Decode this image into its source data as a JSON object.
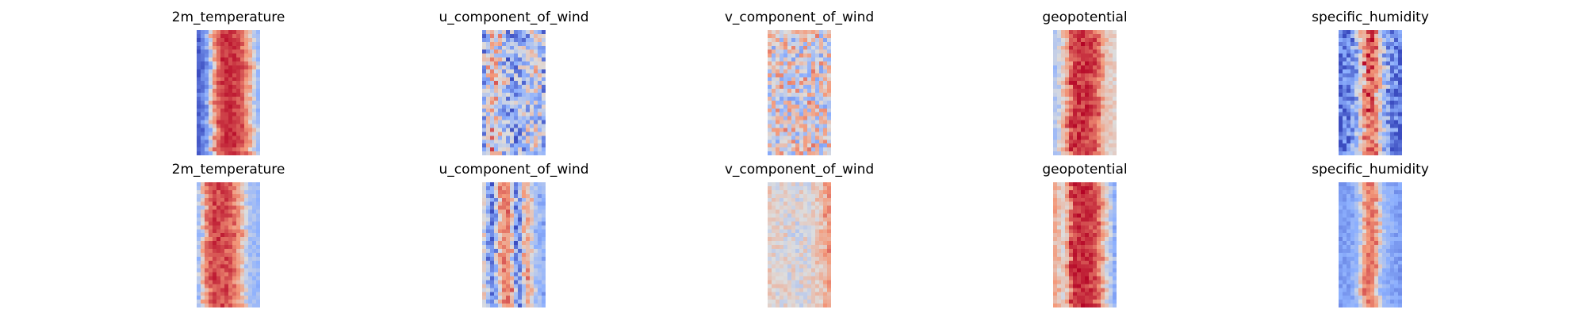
{
  "chart_data": [
    {
      "type": "heatmap",
      "rows": [
        {
          "panels": [
            {
              "title": "2m_temperature",
              "colormap": "coolwarm",
              "profile": [
                0.05,
                0.2,
                0.78,
                0.92,
                0.92,
                0.88,
                0.7,
                0.3
              ],
              "noise": 0.06
            },
            {
              "title": "u_component_of_wind",
              "colormap": "coolwarm",
              "profile": [
                0.3,
                0.65,
                0.45,
                0.25,
                0.28,
                0.35,
                0.5,
                0.3
              ],
              "noise": 0.28
            },
            {
              "title": "v_component_of_wind",
              "colormap": "coolwarm",
              "profile": [
                0.5,
                0.5,
                0.52,
                0.48,
                0.5,
                0.52,
                0.5,
                0.5
              ],
              "noise": 0.3
            },
            {
              "title": "geopotential",
              "colormap": "coolwarm",
              "profile": [
                0.35,
                0.6,
                0.9,
                0.92,
                0.9,
                0.85,
                0.6,
                0.55
              ],
              "noise": 0.08
            },
            {
              "title": "specific_humidity",
              "colormap": "coolwarm",
              "profile": [
                0.08,
                0.15,
                0.35,
                0.85,
                0.85,
                0.35,
                0.15,
                0.08
              ],
              "noise": 0.18
            }
          ]
        },
        {
          "panels": [
            {
              "title": "2m_temperature",
              "colormap": "coolwarm",
              "profile": [
                0.3,
                0.8,
                0.9,
                0.88,
                0.85,
                0.7,
                0.35,
                0.3
              ],
              "noise": 0.07
            },
            {
              "title": "u_component_of_wind",
              "colormap": "coolwarm",
              "profile": [
                0.55,
                0.05,
                0.75,
                0.8,
                0.05,
                0.75,
                0.35,
                0.25
              ],
              "noise": 0.1
            },
            {
              "title": "v_component_of_wind",
              "colormap": "coolwarm",
              "profile": [
                0.55,
                0.5,
                0.52,
                0.48,
                0.5,
                0.52,
                0.6,
                0.72
              ],
              "noise": 0.12
            },
            {
              "title": "geopotential",
              "colormap": "coolwarm",
              "profile": [
                0.7,
                0.5,
                0.9,
                0.95,
                0.92,
                0.85,
                0.55,
                0.25
              ],
              "noise": 0.07
            },
            {
              "title": "specific_humidity",
              "colormap": "coolwarm",
              "profile": [
                0.2,
                0.22,
                0.3,
                0.8,
                0.8,
                0.3,
                0.25,
                0.2
              ],
              "noise": 0.06
            }
          ]
        }
      ]
    }
  ]
}
